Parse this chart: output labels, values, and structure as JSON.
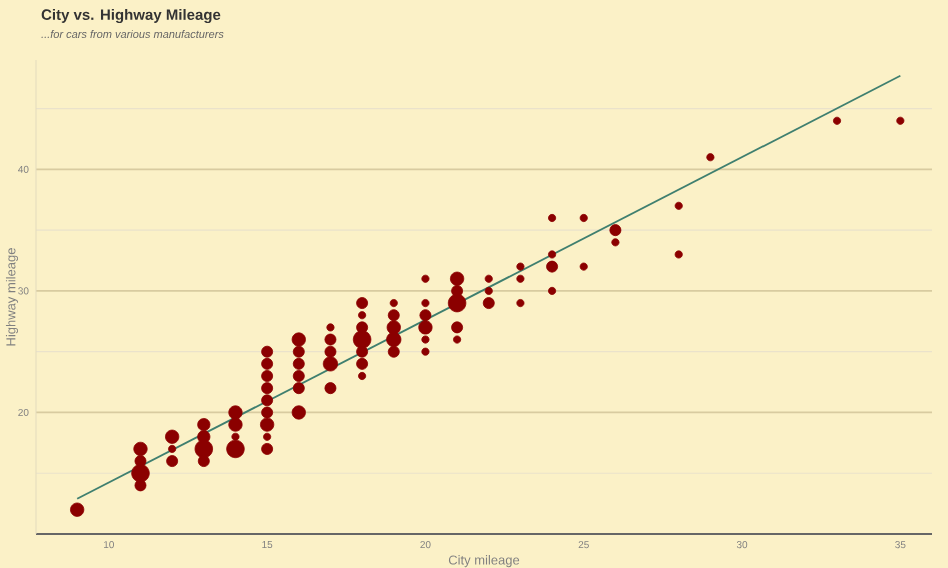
{
  "chart_data": {
    "type": "bubble",
    "title": "City vs. Highway Mileage",
    "subtitle": "...for cars from various manufacturers",
    "xlabel": "City mileage",
    "ylabel": "Highway mileage",
    "xlim": [
      7.7,
      36
    ],
    "ylim": [
      10,
      49
    ],
    "xticks": [
      10,
      15,
      20,
      25,
      30,
      35
    ],
    "yticks": [
      {
        "value": 15,
        "label": null
      },
      20,
      {
        "value": 25,
        "label": null
      },
      30,
      {
        "value": 35,
        "label": null
      },
      40,
      {
        "value": 45,
        "label": null
      }
    ],
    "grid": "y",
    "series": [
      {
        "type": "bubble",
        "color": "#8b0000",
        "x": [
          9,
          11,
          11,
          11,
          11,
          12,
          12,
          12,
          13,
          13,
          13,
          13,
          14,
          14,
          14,
          14,
          15,
          15,
          15,
          15,
          15,
          15,
          15,
          15,
          15,
          16,
          16,
          16,
          16,
          16,
          16,
          17,
          17,
          17,
          17,
          17,
          18,
          18,
          18,
          18,
          18,
          18,
          18,
          19,
          19,
          19,
          19,
          19,
          20,
          20,
          20,
          20,
          20,
          20,
          21,
          21,
          21,
          21,
          21,
          22,
          22,
          22,
          23,
          23,
          23,
          24,
          24,
          24,
          24,
          25,
          25,
          26,
          26,
          28,
          28,
          29,
          33,
          35
        ],
        "values": [
          12,
          17,
          16,
          15,
          14,
          18,
          17,
          16,
          19,
          18,
          17,
          16,
          20,
          19,
          18,
          17,
          25,
          24,
          23,
          22,
          21,
          20,
          19,
          18,
          17,
          26,
          25,
          24,
          23,
          22,
          20,
          27,
          26,
          25,
          24,
          22,
          29,
          28,
          27,
          26,
          25,
          24,
          23,
          29,
          28,
          27,
          26,
          25,
          31,
          29,
          28,
          27,
          26,
          25,
          31,
          30,
          29,
          27,
          26,
          31,
          30,
          29,
          32,
          31,
          29,
          36,
          33,
          32,
          30,
          36,
          32,
          35,
          34,
          37,
          33,
          41,
          44,
          44
        ],
        "sizes": [
          0.5,
          0.5,
          0.3,
          1,
          0.3,
          0.5,
          0.08,
          0.3,
          0.4,
          0.4,
          1,
          0.3,
          0.5,
          0.5,
          0.08,
          1,
          0.3,
          0.3,
          0.3,
          0.3,
          0.3,
          0.3,
          0.5,
          0.08,
          0.3,
          0.5,
          0.3,
          0.3,
          0.3,
          0.3,
          0.5,
          0.08,
          0.3,
          0.3,
          0.6,
          0.3,
          0.3,
          0.08,
          0.3,
          1,
          0.3,
          0.3,
          0.08,
          0.08,
          0.3,
          0.5,
          0.6,
          0.3,
          0.08,
          0.08,
          0.3,
          0.5,
          0.08,
          0.08,
          0.5,
          0.3,
          1,
          0.3,
          0.08,
          0.08,
          0.08,
          0.3,
          0.08,
          0.08,
          0.08,
          0.08,
          0.08,
          0.3,
          0.08,
          0.08,
          0.08,
          0.3,
          0.08,
          0.08,
          0.08,
          0.08,
          0.08,
          0.08
        ]
      },
      {
        "type": "line",
        "color": "#3f7f6f",
        "x": [
          9,
          35
        ],
        "values": [
          12.9,
          47.7
        ]
      }
    ]
  }
}
